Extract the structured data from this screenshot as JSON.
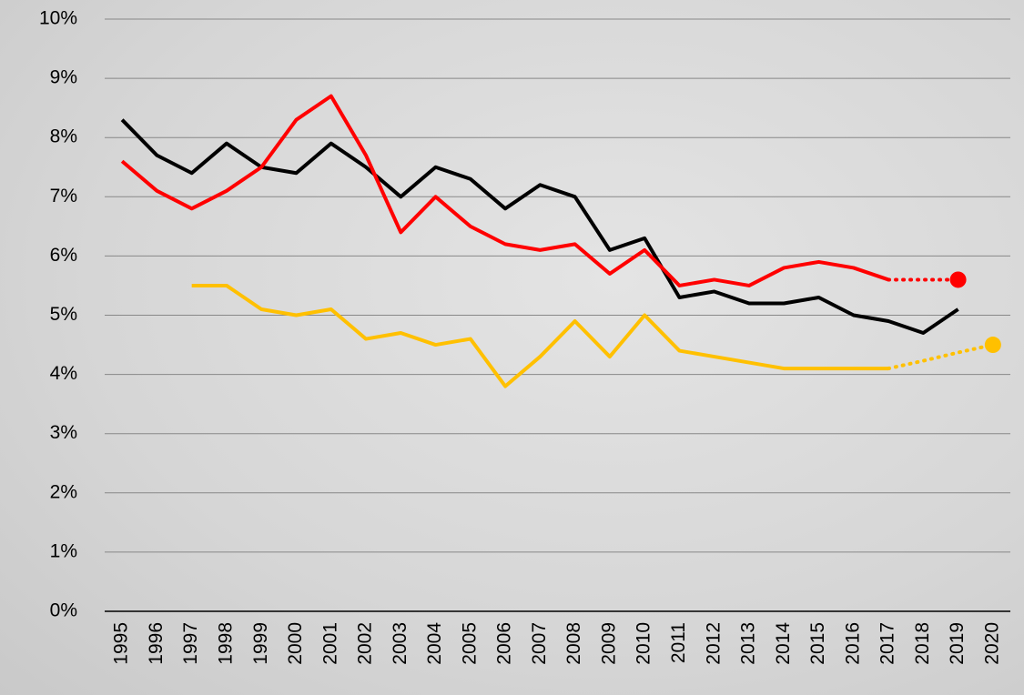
{
  "chart_data": {
    "type": "line",
    "categories": [
      "1995",
      "1996",
      "1997",
      "1998",
      "1999",
      "2000",
      "2001",
      "2002",
      "2003",
      "2004",
      "2005",
      "2006",
      "2007",
      "2008",
      "2009",
      "2010",
      "2011",
      "2012",
      "2013",
      "2014",
      "2015",
      "2016",
      "2017",
      "2018",
      "2019",
      "2020"
    ],
    "series": [
      {
        "color": "#000000",
        "dashed": false,
        "marker": false,
        "values": [
          8.3,
          7.7,
          7.4,
          7.9,
          7.5,
          7.4,
          7.9,
          7.5,
          7.0,
          7.5,
          7.3,
          6.8,
          7.2,
          7.0,
          6.1,
          6.3,
          5.3,
          5.4,
          5.2,
          5.2,
          5.3,
          5.0,
          4.9,
          4.7,
          5.1,
          null
        ]
      },
      {
        "color": "#ff0000",
        "dashed": false,
        "marker": false,
        "values": [
          7.6,
          7.1,
          6.8,
          7.1,
          7.5,
          8.3,
          8.7,
          7.7,
          6.4,
          7.0,
          6.5,
          6.2,
          6.1,
          6.2,
          5.7,
          6.1,
          5.5,
          5.6,
          5.5,
          5.8,
          5.9,
          5.8,
          5.6,
          null,
          null,
          null
        ]
      },
      {
        "color": "#ff0000",
        "dashed": true,
        "marker": true,
        "values": [
          null,
          null,
          null,
          null,
          null,
          null,
          null,
          null,
          null,
          null,
          null,
          null,
          null,
          null,
          null,
          null,
          null,
          null,
          null,
          null,
          null,
          null,
          5.6,
          5.6,
          5.6,
          null
        ]
      },
      {
        "color": "#ffc000",
        "dashed": false,
        "marker": false,
        "values": [
          null,
          null,
          5.5,
          5.5,
          5.1,
          5.0,
          5.1,
          4.6,
          4.7,
          4.5,
          4.6,
          3.8,
          4.3,
          4.9,
          4.3,
          5.0,
          4.4,
          4.3,
          4.2,
          4.1,
          4.1,
          4.1,
          4.1,
          null,
          null,
          null
        ]
      },
      {
        "color": "#ffc000",
        "dashed": true,
        "marker": true,
        "values": [
          null,
          null,
          null,
          null,
          null,
          null,
          null,
          null,
          null,
          null,
          null,
          null,
          null,
          null,
          null,
          null,
          null,
          null,
          null,
          null,
          null,
          null,
          4.1,
          4.23,
          4.37,
          4.5
        ]
      }
    ],
    "ylim": [
      0,
      10
    ],
    "yticks": [
      {
        "value": 0,
        "label": "0%"
      },
      {
        "value": 1,
        "label": "1%"
      },
      {
        "value": 2,
        "label": "2%"
      },
      {
        "value": 3,
        "label": "3%"
      },
      {
        "value": 4,
        "label": "4%"
      },
      {
        "value": 5,
        "label": "5%"
      },
      {
        "value": 6,
        "label": "6%"
      },
      {
        "value": 7,
        "label": "7%"
      },
      {
        "value": 8,
        "label": "8%"
      },
      {
        "value": 9,
        "label": "9%"
      },
      {
        "value": 10,
        "label": "10%"
      }
    ],
    "grid": true
  }
}
